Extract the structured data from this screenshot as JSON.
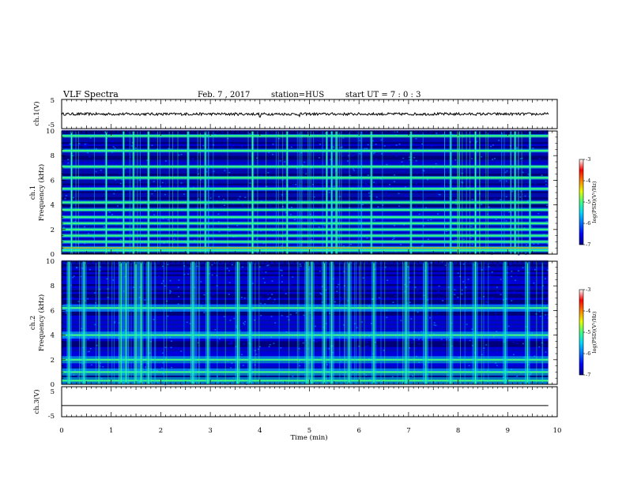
{
  "header": {
    "title": "VLF Spectra",
    "date": "Feb. 7 , 2017",
    "station": "station=HUS",
    "start": "start  UT =   7 : 0  : 3"
  },
  "chart_data": [
    {
      "type": "line",
      "panel": "ch1-waveform",
      "ylabel": "ch.1(V)",
      "ylim": [
        -5,
        5
      ],
      "yticks": [
        "5",
        "-5"
      ],
      "x": [
        0,
        3.99,
        4.0,
        4.01,
        4.8,
        4.81,
        9.82
      ],
      "values": [
        0,
        0,
        -1.0,
        0,
        0,
        -0.8,
        0
      ]
    },
    {
      "type": "heatmap",
      "panel": "ch1-spectrogram",
      "ylabel": "ch.1",
      "ylabel2": "Frequency (kHz)",
      "ylim": [
        0,
        10
      ],
      "yticks": [
        "0",
        "2",
        "4",
        "6",
        "8",
        "10"
      ],
      "xlim": [
        0,
        9.82
      ],
      "bands_khz": [
        0.3,
        0.5,
        1.0,
        1.5,
        2.0,
        2.5,
        3.0,
        3.6,
        4.2,
        5.3,
        6.2,
        7.1,
        8.4,
        9.6
      ],
      "spikes_min": [
        0.2,
        0.9,
        1.25,
        1.45,
        1.75,
        2.55,
        2.9,
        3.85,
        4.55,
        5.35,
        5.45,
        5.55,
        6.25,
        7.05,
        7.85,
        8.35,
        9.15,
        9.45
      ]
    },
    {
      "type": "heatmap",
      "panel": "ch2-spectrogram",
      "ylabel": "ch.2",
      "ylabel2": "Frequency (kHz)",
      "ylim": [
        0,
        10
      ],
      "yticks": [
        "0",
        "2",
        "4",
        "6",
        "8",
        "10"
      ],
      "xlim": [
        0,
        9.82
      ],
      "bands_khz": [
        0.3,
        1.0,
        2.0,
        4.0,
        6.2
      ],
      "spikes_min": [
        0.15,
        0.45,
        1.2,
        1.3,
        1.5,
        1.6,
        1.75,
        2.65,
        2.95,
        3.55,
        3.8,
        4.95,
        5.05,
        5.3,
        5.45,
        5.8,
        6.3,
        6.95,
        7.35,
        7.85,
        8.35,
        8.95,
        9.4
      ]
    },
    {
      "type": "line",
      "panel": "ch3-waveform",
      "ylabel": "ch.3(V)",
      "ylim": [
        -5,
        5
      ],
      "yticks": [
        "5",
        "-5"
      ],
      "x": [
        0,
        9.82
      ],
      "values": [
        -1.3,
        -1.3
      ]
    }
  ],
  "x_axis": {
    "label": "Time (min)",
    "ticks": [
      "0",
      "1",
      "2",
      "3",
      "4",
      "5",
      "6",
      "7",
      "8",
      "9",
      "10"
    ],
    "xlim": [
      0,
      10
    ]
  },
  "colorbar": {
    "label": "log(PSD)(V²/Hz)",
    "ticks": [
      "-3",
      "-4",
      "-5",
      "-6",
      "-7"
    ],
    "range": [
      -7,
      -3
    ],
    "colors": [
      "#00008a",
      "#0000ff",
      "#0070ff",
      "#00d8ff",
      "#40ff80",
      "#e8ff00",
      "#ff8000",
      "#ff0000",
      "#ffffff"
    ]
  }
}
